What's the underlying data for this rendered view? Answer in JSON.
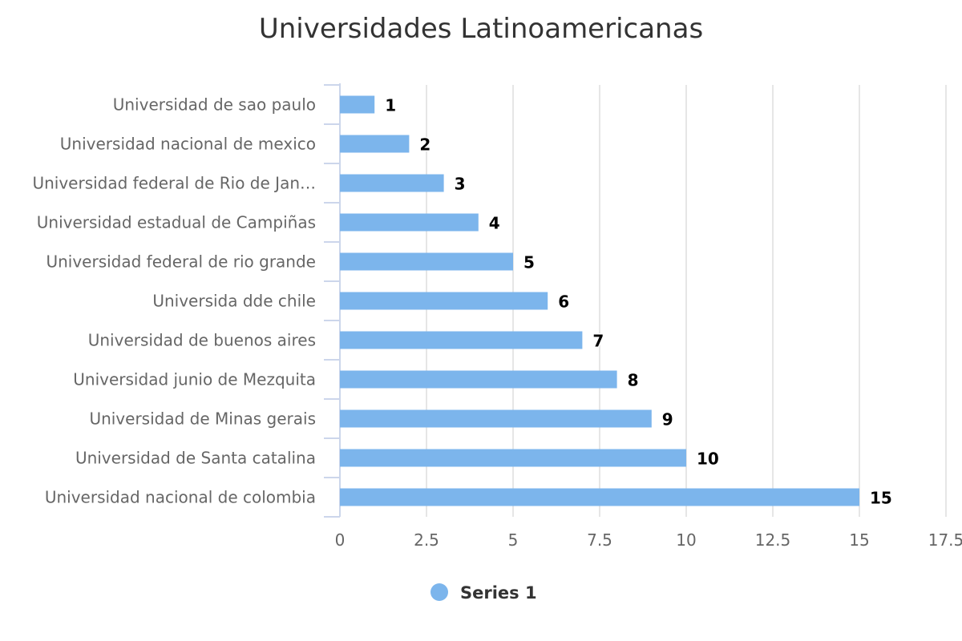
{
  "chart_data": {
    "type": "bar",
    "orientation": "horizontal",
    "title": "Universidades Latinoamericanas",
    "categories": [
      "Universidad de sao paulo",
      "Universidad nacional de mexico",
      "Universidad federal de Rio de Jan…",
      "Universidad estadual de Campiñas",
      "Universidad federal de rio grande",
      "Universida dde chile",
      "Universidad de buenos aires",
      "Universidad junio de Mezquita",
      "Universidad de Minas gerais",
      "Universidad de Santa catalina",
      "Universidad nacional de colombia"
    ],
    "series": [
      {
        "name": "Series 1",
        "values": [
          1,
          2,
          3,
          4,
          5,
          6,
          7,
          8,
          9,
          10,
          15
        ],
        "color": "#7cb5ec"
      }
    ],
    "xlim": [
      0,
      17.5
    ],
    "x_ticks": [
      "0",
      "2.5",
      "5",
      "7.5",
      "10",
      "12.5",
      "15",
      "17.5"
    ],
    "x_tick_values": [
      0,
      2.5,
      5,
      7.5,
      10,
      12.5,
      15,
      17.5
    ],
    "grid": true,
    "data_labels": true,
    "legend": {
      "position": "bottom-center"
    }
  }
}
